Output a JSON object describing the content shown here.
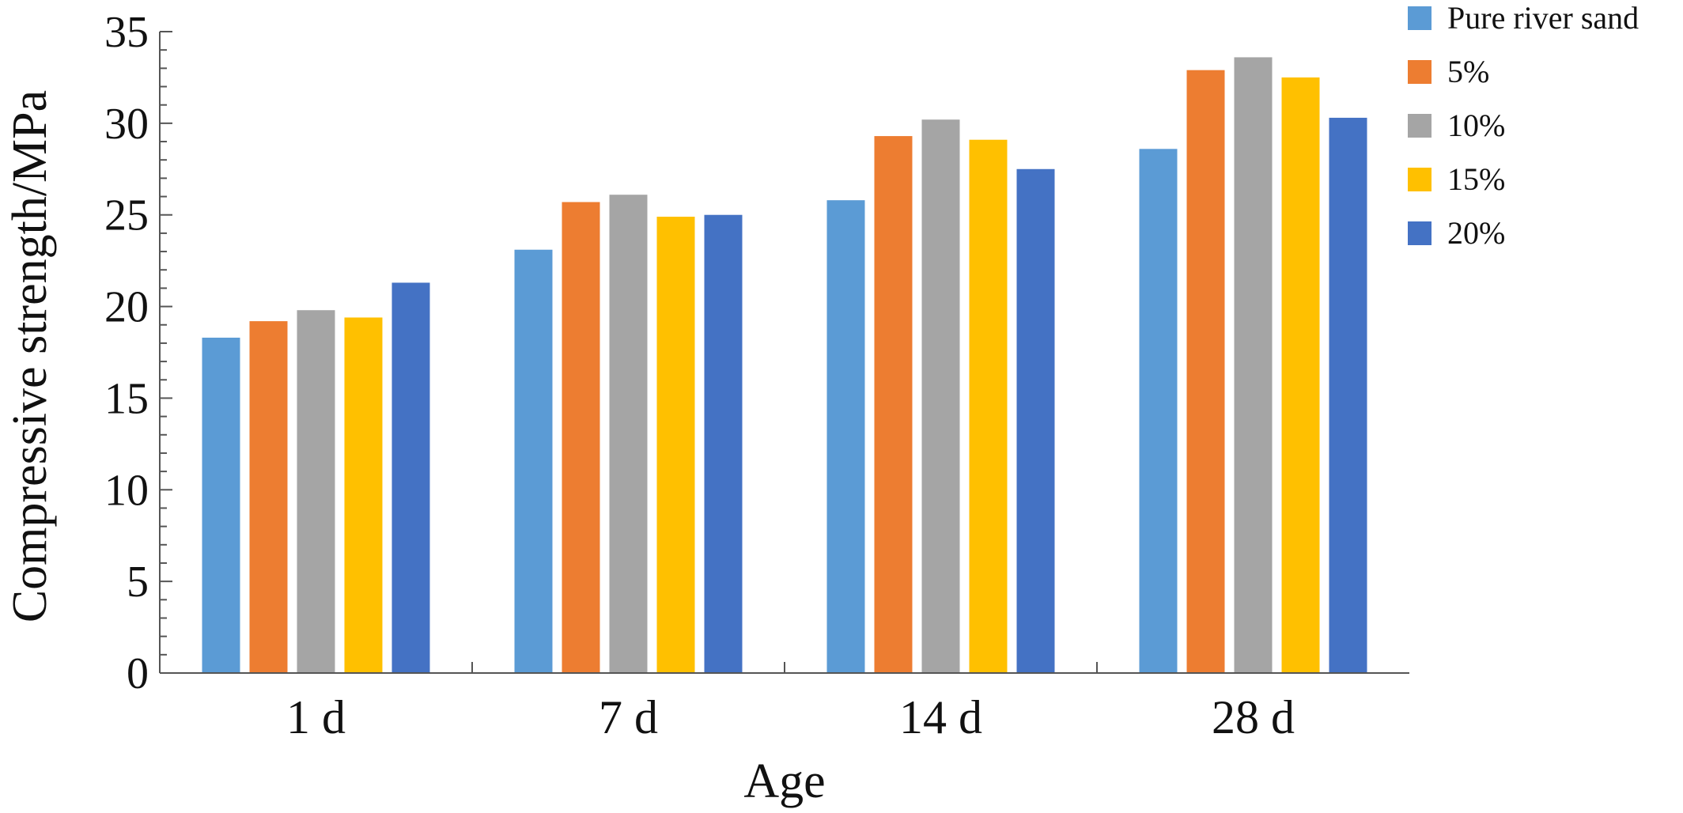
{
  "chart_data": {
    "type": "bar",
    "categories": [
      "1 d",
      "7 d",
      "14 d",
      "28 d"
    ],
    "series": [
      {
        "name": "Pure river sand",
        "color": "#5B9BD5",
        "values": [
          18.3,
          23.1,
          25.8,
          28.6
        ]
      },
      {
        "name": "5%",
        "color": "#ED7D31",
        "values": [
          19.2,
          25.7,
          29.3,
          32.9
        ]
      },
      {
        "name": "10%",
        "color": "#A5A5A5",
        "values": [
          19.8,
          26.1,
          30.2,
          33.6
        ]
      },
      {
        "name": "15%",
        "color": "#FFC000",
        "values": [
          19.4,
          24.9,
          29.1,
          32.5
        ]
      },
      {
        "name": "20%",
        "color": "#4472C4",
        "values": [
          21.3,
          25.0,
          27.5,
          30.3
        ]
      }
    ],
    "title": "",
    "xlabel": "Age",
    "ylabel": "Compressive strength/MPa",
    "ylim": [
      0,
      35
    ],
    "yticks": [
      0,
      5,
      10,
      15,
      20,
      25,
      30,
      35
    ],
    "grid": false,
    "legend_position": "top-right"
  }
}
